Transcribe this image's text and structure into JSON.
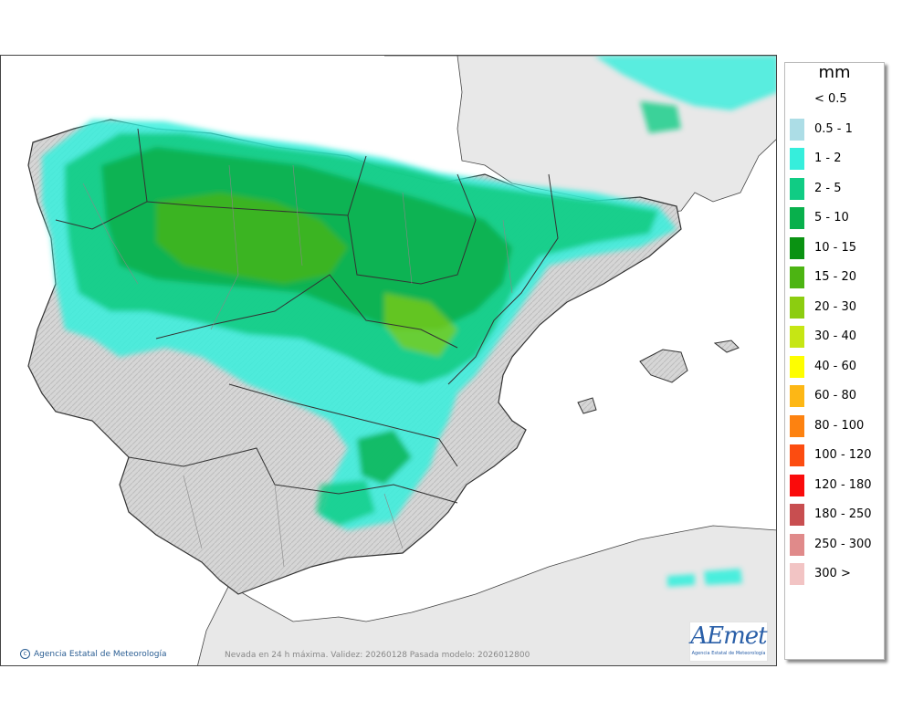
{
  "legend": {
    "title": "mm",
    "items": [
      {
        "label": "< 0.5",
        "color": "#ffffff"
      },
      {
        "label": "0.5 - 1",
        "color": "#acdde6"
      },
      {
        "label": "1 - 2",
        "color": "#36eedc"
      },
      {
        "label": "2 - 5",
        "color": "#10cc84"
      },
      {
        "label": "5 - 10",
        "color": "#08b04c"
      },
      {
        "label": "10 - 15",
        "color": "#0a9212"
      },
      {
        "label": "15 - 20",
        "color": "#4cb412"
      },
      {
        "label": "20 - 30",
        "color": "#8ccd10"
      },
      {
        "label": "30 - 40",
        "color": "#c6e614"
      },
      {
        "label": "40 - 60",
        "color": "#fefe00"
      },
      {
        "label": "60 - 80",
        "color": "#fdb715"
      },
      {
        "label": "80 - 100",
        "color": "#fd8210"
      },
      {
        "label": "100 - 120",
        "color": "#fc4c10"
      },
      {
        "label": "120 - 180",
        "color": "#fa0b0b"
      },
      {
        "label": "180 - 250",
        "color": "#c84e50"
      },
      {
        "label": "250 - 300",
        "color": "#e08a8a"
      },
      {
        "label": "300 >",
        "color": "#f2c4c4"
      }
    ]
  },
  "credit": "Agencia Estatal de Meteorología",
  "credit_icon": "copyright-icon",
  "caption": "Nevada en 24 h máxima. Validez: 20260128 Pasada modelo: 2026012800",
  "logo": {
    "mark": "AEmet",
    "sub": "Agencia Estatal de Meteorología",
    "icon": "aemet-logo"
  },
  "colors": {
    "sea": "#ffffff",
    "land": "#dcdcdc",
    "foreign_land": "#e6e6e6",
    "border": "#333333",
    "region_border": "#888888"
  }
}
